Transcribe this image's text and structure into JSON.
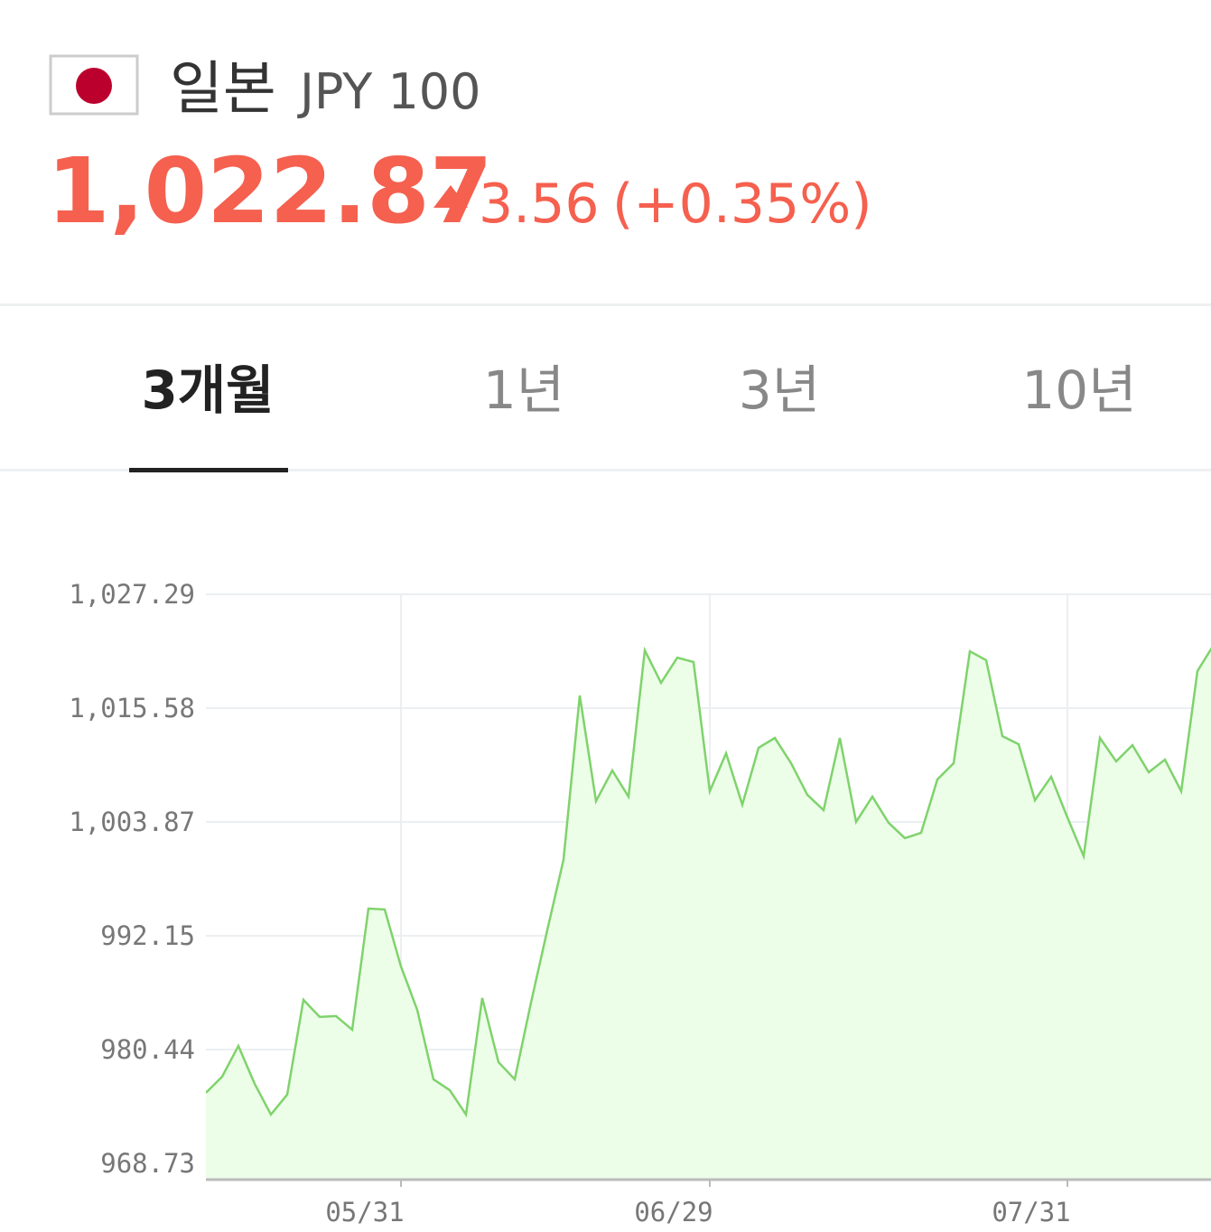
{
  "header": {
    "title": "일본",
    "unit": "JPY 100",
    "price": "1,022.87",
    "change": "3.56",
    "change_pct": "(+0.35%)"
  },
  "tabs": [
    "3개월",
    "1년",
    "3년",
    "10년"
  ],
  "chart_data": {
    "type": "area",
    "categories": [
      null,
      null,
      null,
      null,
      null,
      null,
      null,
      null,
      null,
      null,
      null,
      null,
      "05/31",
      null,
      null,
      null,
      null,
      null,
      null,
      null,
      null,
      null,
      null,
      null,
      null,
      null,
      null,
      null,
      null,
      null,
      null,
      "06/29",
      null,
      null,
      null,
      null,
      null,
      null,
      null,
      null,
      null,
      null,
      null,
      null,
      null,
      null,
      null,
      null,
      null,
      null,
      null,
      null,
      null,
      "07/31",
      null,
      null,
      null,
      null,
      null,
      null,
      null,
      null,
      null
    ],
    "values": [
      975.99,
      977.66,
      980.82,
      976.92,
      973.76,
      975.8,
      985.56,
      983.8,
      983.89,
      982.49,
      994.95,
      994.86,
      989.0,
      984.54,
      977.38,
      976.27,
      973.76,
      985.75,
      979.15,
      977.38,
      985.28,
      992.72,
      999.97,
      1016.88,
      1006.01,
      1009.17,
      1006.47,
      1021.53,
      1018.18,
      1020.78,
      1020.32,
      1007.03,
      1010.93,
      1005.64,
      1011.49,
      1012.51,
      1009.91,
      1006.66,
      1005.08,
      1012.51,
      1003.87,
      1006.47,
      1003.78,
      1002.2,
      1002.75,
      1008.24,
      1009.91,
      1021.43,
      1020.51,
      1012.7,
      1011.86,
      1006.1,
      1008.52,
      1004.33,
      1000.34,
      1012.51,
      1010.1,
      1011.77,
      1008.98,
      1010.28,
      1007.03,
      1019.39,
      1022.09
    ],
    "color": "#7fd36c",
    "ylim": [
      967.06,
      1027.29
    ],
    "yticks": [
      968.73,
      980.44,
      992.15,
      {
        "value": 1003.87,
        "label": "1,003.87"
      },
      {
        "value": 1015.58,
        "label": "1,015.58"
      },
      {
        "value": 1027.29,
        "label": "1,027.29"
      }
    ],
    "grid": true
  }
}
